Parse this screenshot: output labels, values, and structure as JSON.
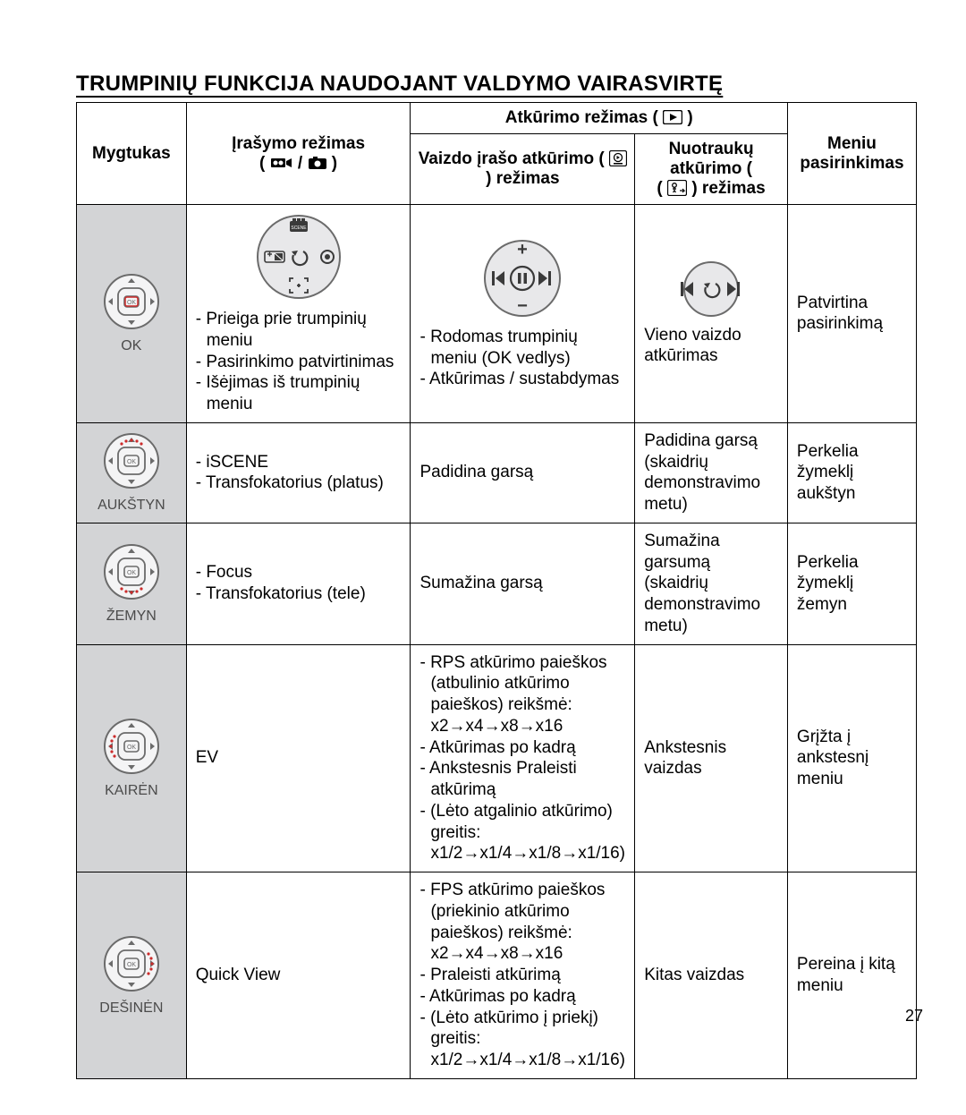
{
  "title": "TRUMPINIŲ FUNKCIJA NAUDOJANT VALDYMO VAIRASVIRTĘ",
  "page_number": "27",
  "colors": {
    "button_cell_bg": "#d3d4d6",
    "button_label_color": "#4b4b4b",
    "highlight_dot": "#cc2b2b",
    "border": "#000000",
    "background": "#ffffff"
  },
  "headers": {
    "col_button": "Mygtukas",
    "col_record": "Įrašymo režimas",
    "col_record_icons_note": "(video / photo)",
    "playback_group": "Atkūrimo režimas (",
    "playback_group_close": ")",
    "col_video": "Vaizdo įrašo atkūrimo (",
    "col_video2": ") režimas",
    "col_photo": "Nuotraukų atkūrimo (",
    "col_photo2": ") režimas",
    "col_menu": "Meniu pasirinkimas"
  },
  "rows": [
    {
      "button_label": "OK",
      "joystick_highlight": "center",
      "record_items": [
        "Prieiga prie trumpinių meniu",
        "Pasirinkimo patvirtinimas",
        "Išėjimas iš trumpinių meniu"
      ],
      "video_items": [
        "Rodomas trumpinių meniu (OK vedlys)",
        "Atkūrimas / sustabdymas"
      ],
      "photo_text": "Vieno vaizdo atkūrimas",
      "menu_text": "Patvirtina pasirinkimą",
      "show_record_bigcircle": true,
      "show_video_bigcircle": true,
      "show_photo_bigcircle": true
    },
    {
      "button_label": "AUKŠTYN",
      "joystick_highlight": "up",
      "record_items": [
        "iSCENE",
        "Transfokatorius (platus)"
      ],
      "video_text": "Padidina garsą",
      "photo_text": "Padidina garsą (skaidrių demonstravimo metu)",
      "menu_text": "Perkelia žymeklį aukštyn"
    },
    {
      "button_label": "ŽEMYN",
      "joystick_highlight": "down",
      "record_items": [
        "Focus",
        "Transfokatorius (tele)"
      ],
      "video_text": "Sumažina garsą",
      "photo_text": "Sumažina garsumą (skaidrių demonstravimo metu)",
      "menu_text": "Perkelia žymeklį žemyn"
    },
    {
      "button_label": "KAIRĖN",
      "joystick_highlight": "left",
      "record_text": "EV",
      "video_items": [
        "RPS atkūrimo paieškos (atbulinio atkūrimo paieškos) reikšmė: x2→x4→x8→x16",
        "Atkūrimas po kadrą",
        "Ankstesnis Praleisti atkūrimą",
        "(Lėto atgalinio atkūrimo) greitis: x1/2→x1/4→x1/8→x1/16)"
      ],
      "photo_text": "Ankstesnis vaizdas",
      "menu_text": "Grįžta į ankstesnį meniu"
    },
    {
      "button_label": "DEŠINĖN",
      "joystick_highlight": "right",
      "record_text": "Quick View",
      "video_items": [
        "FPS atkūrimo paieškos (priekinio atkūrimo paieškos) reikšmė: x2→x4→x8→x16",
        "Praleisti atkūrimą",
        "Atkūrimas po kadrą",
        "(Lėto atkūrimo į priekį) greitis: x1/2→x1/4→x1/8→x1/16)"
      ],
      "photo_text": "Kitas vaizdas",
      "menu_text": "Pereina į kitą meniu"
    }
  ]
}
